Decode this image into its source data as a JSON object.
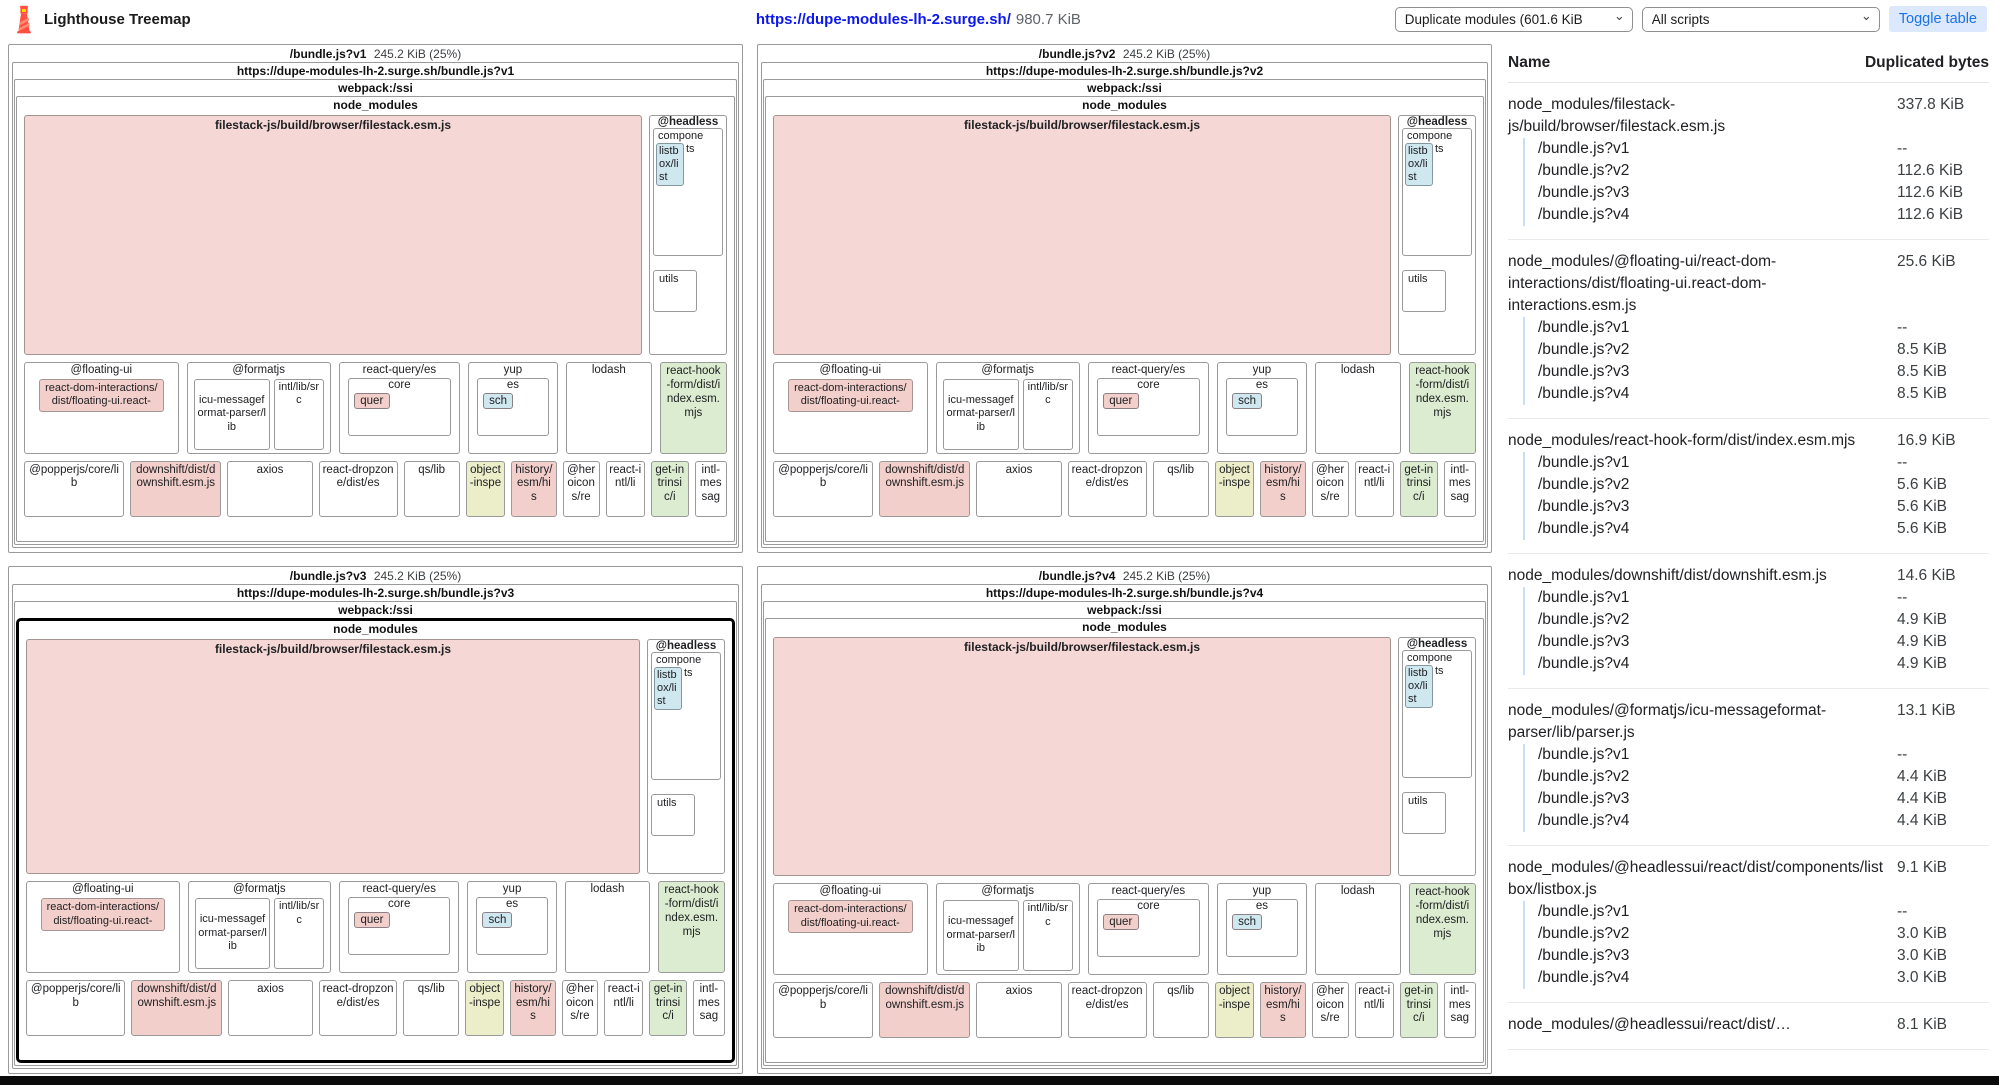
{
  "colors": {
    "pink": "#f5d8d5",
    "pink_inner": "#f3cfcb",
    "blue": "#cfe8f0",
    "green": "#dcecd0",
    "yellow": "#ebeec9",
    "link_blue": "#0d18ee",
    "toggle_bg": "#dbe8fd",
    "toggle_text": "#1a73e8",
    "border_gray": "#9a9a9a"
  },
  "header": {
    "app_title": "Lighthouse Treemap",
    "url": "https://dupe-modules-lh-2.surge.sh/",
    "total_size": "980.7 KiB",
    "view_mode_selected": "Duplicate modules (601.6 KiB",
    "script_selected": "All scripts",
    "toggle_table_label": "Toggle table",
    "chevron": "⌄"
  },
  "treemap": {
    "shared": {
      "webpack_label": "webpack:/ssi",
      "node_modules_label": "node_modules",
      "filestack_label": "filestack-js/build/browser/filestack.esm.js",
      "headless_label": "@headless",
      "components_label": "compone",
      "components_suffix": "ts",
      "listbox_label": "listbox/list",
      "utils_label": "utils",
      "floating_ui_label": "@floating-ui",
      "floating_inner_label": "react-dom-interactions/dist/floating-ui.react-",
      "formatjs_label": "@formatjs",
      "icu_label": "icu-messageformat-parser/lib",
      "intl_label": "intl/lib/src",
      "react_query_label": "react-query/es",
      "core_label": "core",
      "quer_label": "quer",
      "yup_label": "yup",
      "es_label": "es",
      "sch_label": "sch",
      "lodash_label": "lodash",
      "react_hook_label": "react-hook-form/dist/index.esm.mjs",
      "bottom_row": [
        {
          "label": "@popperjs/core/lib",
          "tone": "plain"
        },
        {
          "label": "downshift/dist/downshift.esm.js",
          "tone": "pink"
        },
        {
          "label": "axios",
          "tone": "plain"
        },
        {
          "label": "react-dropzone/dist/es",
          "tone": "plain"
        },
        {
          "label": "qs/lib",
          "tone": "plain"
        },
        {
          "label": "object-inspe",
          "tone": "yellow"
        },
        {
          "label": "history/esm/his",
          "tone": "pink"
        },
        {
          "label": "@heroicons/re",
          "tone": "plain"
        },
        {
          "label": "react-intl/li",
          "tone": "plain"
        },
        {
          "label": "get-intrinsic/i",
          "tone": "green"
        },
        {
          "label": "intl-messag",
          "tone": "plain"
        }
      ]
    },
    "quadrants": [
      {
        "name": "/bundle.js?v1",
        "size": "245.2 KiB (25%)",
        "url": "https://dupe-modules-lh-2.surge.sh/bundle.js?v1",
        "highlighted": false
      },
      {
        "name": "/bundle.js?v2",
        "size": "245.2 KiB (25%)",
        "url": "https://dupe-modules-lh-2.surge.sh/bundle.js?v2",
        "highlighted": false
      },
      {
        "name": "/bundle.js?v3",
        "size": "245.2 KiB (25%)",
        "url": "https://dupe-modules-lh-2.surge.sh/bundle.js?v3",
        "highlighted": true
      },
      {
        "name": "/bundle.js?v4",
        "size": "245.2 KiB (25%)",
        "url": "https://dupe-modules-lh-2.surge.sh/bundle.js?v4",
        "highlighted": false
      }
    ]
  },
  "table": {
    "name_header": "Name",
    "bytes_header": "Duplicated bytes",
    "groups": [
      {
        "name": "node_modules/filestack-js/build/browser/filestack.esm.js",
        "size": "337.8 KiB",
        "rows": [
          {
            "label": "/bundle.js?v1",
            "value": "--"
          },
          {
            "label": "/bundle.js?v2",
            "value": "112.6 KiB"
          },
          {
            "label": "/bundle.js?v3",
            "value": "112.6 KiB"
          },
          {
            "label": "/bundle.js?v4",
            "value": "112.6 KiB"
          }
        ]
      },
      {
        "name": "node_modules/@floating-ui/react-dom-interactions/dist/floating-ui.react-dom-interactions.esm.js",
        "size": "25.6 KiB",
        "rows": [
          {
            "label": "/bundle.js?v1",
            "value": "--"
          },
          {
            "label": "/bundle.js?v2",
            "value": "8.5 KiB"
          },
          {
            "label": "/bundle.js?v3",
            "value": "8.5 KiB"
          },
          {
            "label": "/bundle.js?v4",
            "value": "8.5 KiB"
          }
        ]
      },
      {
        "name": "node_modules/react-hook-form/dist/index.esm.mjs",
        "size": "16.9 KiB",
        "rows": [
          {
            "label": "/bundle.js?v1",
            "value": "--"
          },
          {
            "label": "/bundle.js?v2",
            "value": "5.6 KiB"
          },
          {
            "label": "/bundle.js?v3",
            "value": "5.6 KiB"
          },
          {
            "label": "/bundle.js?v4",
            "value": "5.6 KiB"
          }
        ]
      },
      {
        "name": "node_modules/downshift/dist/downshift.esm.js",
        "size": "14.6 KiB",
        "rows": [
          {
            "label": "/bundle.js?v1",
            "value": "--"
          },
          {
            "label": "/bundle.js?v2",
            "value": "4.9 KiB"
          },
          {
            "label": "/bundle.js?v3",
            "value": "4.9 KiB"
          },
          {
            "label": "/bundle.js?v4",
            "value": "4.9 KiB"
          }
        ]
      },
      {
        "name": "node_modules/@formatjs/icu-messageformat-parser/lib/parser.js",
        "size": "13.1 KiB",
        "rows": [
          {
            "label": "/bundle.js?v1",
            "value": "--"
          },
          {
            "label": "/bundle.js?v2",
            "value": "4.4 KiB"
          },
          {
            "label": "/bundle.js?v3",
            "value": "4.4 KiB"
          },
          {
            "label": "/bundle.js?v4",
            "value": "4.4 KiB"
          }
        ]
      },
      {
        "name": "node_modules/@headlessui/react/dist/components/listbox/listbox.js",
        "size": "9.1 KiB",
        "rows": [
          {
            "label": "/bundle.js?v1",
            "value": "--"
          },
          {
            "label": "/bundle.js?v2",
            "value": "3.0 KiB"
          },
          {
            "label": "/bundle.js?v3",
            "value": "3.0 KiB"
          },
          {
            "label": "/bundle.js?v4",
            "value": "3.0 KiB"
          }
        ]
      },
      {
        "name": "node_modules/@headlessui/react/dist/…",
        "size": "8.1 KiB",
        "rows": []
      }
    ]
  }
}
